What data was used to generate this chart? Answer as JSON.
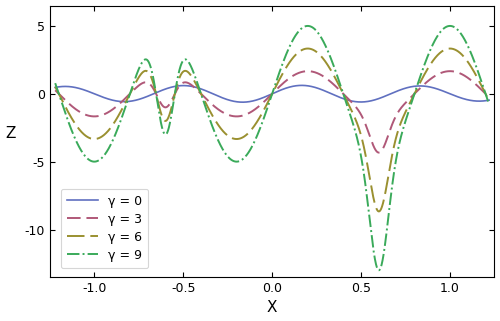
{
  "title": "",
  "xlabel": "X",
  "ylabel": "Z",
  "xlim": [
    -1.25,
    1.25
  ],
  "ylim": [
    -13.5,
    6.5
  ],
  "xticks": [
    -1.0,
    -0.5,
    0.0,
    0.5,
    1.0
  ],
  "yticks": [
    5,
    0,
    -5,
    -10
  ],
  "legend_labels": [
    "γ = 0",
    "γ = 3",
    "γ = 6",
    "γ = 9"
  ],
  "line_colors": [
    "#6070c0",
    "#b05878",
    "#9a9030",
    "#3aaa5a"
  ],
  "gamma_values": [
    0,
    3,
    6,
    9
  ],
  "figsize": [
    5.0,
    3.21
  ],
  "dpi": 100
}
